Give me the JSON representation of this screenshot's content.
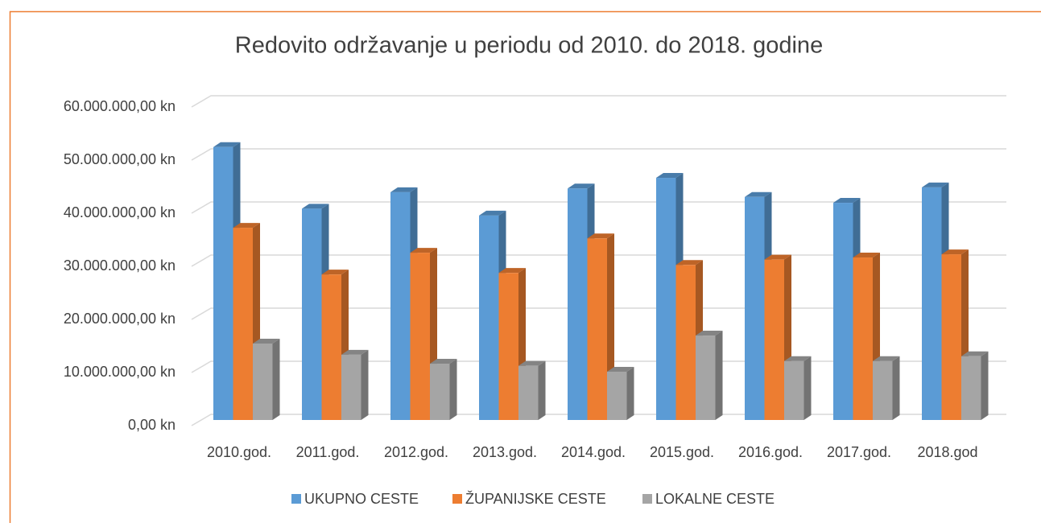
{
  "chart_data": {
    "type": "bar3d",
    "title": "Redovito održavanje u periodu od 2010. do 2018. godine",
    "categories": [
      "2010.god.",
      "2011.god.",
      "2012.god.",
      "2013.god.",
      "2014.god.",
      "2015.god.",
      "2016.god.",
      "2017.god.",
      "2018.god"
    ],
    "series": [
      {
        "name": "UKUPNO CESTE",
        "color": "#5b9bd5",
        "values": [
          51400000,
          39800000,
          42900000,
          38500000,
          43600000,
          45600000,
          42000000,
          40900000,
          43800000
        ]
      },
      {
        "name": "ŽUPANIJSKE CESTE",
        "color": "#ed7d31",
        "values": [
          36200000,
          27400000,
          31500000,
          27700000,
          34200000,
          29200000,
          30200000,
          30600000,
          31200000
        ]
      },
      {
        "name": "LOKALNE CESTE",
        "color": "#a5a5a5",
        "values": [
          14400000,
          12300000,
          10600000,
          10200000,
          9100000,
          15900000,
          11100000,
          11100000,
          12000000
        ]
      }
    ],
    "ylim": [
      0,
      60000000
    ],
    "yticks": [
      {
        "value": 0,
        "label": "0,00 kn"
      },
      {
        "value": 10000000,
        "label": "10.000.000,00 kn"
      },
      {
        "value": 20000000,
        "label": "20.000.000,00 kn"
      },
      {
        "value": 30000000,
        "label": "30.000.000,00 kn"
      },
      {
        "value": 40000000,
        "label": "40.000.000,00 kn"
      },
      {
        "value": 50000000,
        "label": "50.000.000,00 kn"
      },
      {
        "value": 60000000,
        "label": "60.000.000,00 kn"
      }
    ],
    "grid": true,
    "legend": "bottom"
  }
}
